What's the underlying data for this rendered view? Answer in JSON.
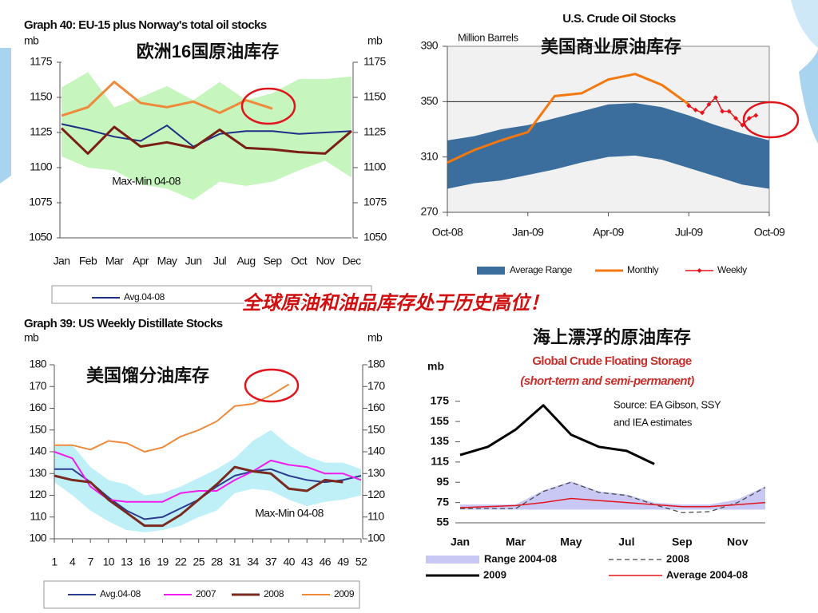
{
  "banner": "全球原油和油品库存处于历史高位！",
  "chart_data": [
    {
      "type": "line",
      "title": "Graph 40:  EU-15 plus Norway's total oil stocks",
      "annotation": "欧洲16国原油库存",
      "y_label": "mb",
      "y2_label": "mb",
      "categories": [
        "Jan",
        "Feb",
        "Mar",
        "Apr",
        "May",
        "Jun",
        "Jul",
        "Aug",
        "Sep",
        "Oct",
        "Nov",
        "Dec"
      ],
      "ylim": [
        1050,
        1175
      ],
      "yticks": [
        1050,
        1075,
        1100,
        1125,
        1150,
        1175
      ],
      "y2lim": [
        1050,
        1175
      ],
      "y2ticks": [
        1050,
        1075,
        1100,
        1125,
        1150,
        1175
      ],
      "band": {
        "name": "Max-Min 04-08",
        "color": "#c6f5be",
        "upper": [
          1157,
          1168,
          1143,
          1150,
          1158,
          1148,
          1161,
          1148,
          1153,
          1163,
          1163,
          1165
        ],
        "lower": [
          1108,
          1100,
          1098,
          1088,
          1085,
          1077,
          1090,
          1087,
          1090,
          1098,
          1105,
          1093
        ]
      },
      "series": [
        {
          "name": "Avg.04-08",
          "color": "#1f2f86",
          "values": [
            1131,
            1127,
            1122,
            1119,
            1130,
            1115,
            1124,
            1126,
            1126,
            1124,
            1125,
            1126
          ]
        },
        {
          "color": "#7a1f14",
          "values": [
            1128,
            1110,
            1129,
            1115,
            1118,
            1114,
            1127,
            1114,
            1113,
            1111,
            1110,
            1126
          ]
        },
        {
          "color": "#ef8a3c",
          "values": [
            1137,
            1143,
            1161,
            1146,
            1143,
            1147,
            1139,
            1148,
            1142,
            null,
            null,
            null
          ]
        }
      ]
    },
    {
      "type": "line",
      "title": "U.S. Crude Oil Stocks",
      "y_label": "Million Barrels",
      "annotation": "美国商业原油库存",
      "xlim": [
        0,
        12
      ],
      "xticks": [
        {
          "value": 0,
          "label": "Oct-08"
        },
        {
          "value": 3,
          "label": "Jan-09"
        },
        {
          "value": 6,
          "label": "Apr-09"
        },
        {
          "value": 9,
          "label": "Jul-09"
        },
        {
          "value": 12,
          "label": "Oct-09"
        }
      ],
      "ylim": [
        270,
        390
      ],
      "yticks": [
        270,
        310,
        350,
        390
      ],
      "hline": 350,
      "band": {
        "name": "Average Range",
        "color": "#3b6e9c",
        "x": [
          0,
          1,
          2,
          3,
          4,
          5,
          6,
          7,
          8,
          9,
          10,
          11,
          12
        ],
        "upper": [
          322,
          325,
          330,
          333,
          338,
          343,
          348,
          349,
          346,
          340,
          333,
          327,
          322
        ],
        "lower": [
          287,
          291,
          293,
          297,
          301,
          306,
          310,
          311,
          308,
          302,
          296,
          290,
          287
        ]
      },
      "series": [
        {
          "name": "Monthly",
          "color": "#f5780f",
          "x": [
            0,
            1,
            2,
            3,
            4,
            5,
            6,
            7,
            8,
            9
          ],
          "values": [
            306,
            315,
            322,
            328,
            354,
            356,
            366,
            370,
            362,
            348
          ]
        },
        {
          "name": "Weekly",
          "color": "#e8141c",
          "marker": true,
          "x": [
            9,
            9.25,
            9.5,
            9.75,
            10,
            10.25,
            10.5,
            10.75,
            11,
            11.25,
            11.5
          ],
          "values": [
            347,
            344,
            342,
            348,
            353,
            343,
            343,
            338,
            333,
            338,
            340
          ]
        }
      ]
    },
    {
      "type": "line",
      "title": "Graph 39:  US Weekly Distillate Stocks",
      "annotation": "美国馏分油库存",
      "y_label": "mb",
      "y2_label": "mb",
      "x": [
        1,
        4,
        7,
        10,
        13,
        16,
        19,
        22,
        25,
        28,
        31,
        34,
        37,
        40,
        43,
        46,
        49,
        52
      ],
      "xlim": [
        1,
        52
      ],
      "xticks": [
        1,
        4,
        7,
        10,
        13,
        16,
        19,
        22,
        25,
        28,
        31,
        34,
        37,
        40,
        43,
        46,
        49,
        52
      ],
      "ylim": [
        100,
        180
      ],
      "yticks": [
        100,
        110,
        120,
        130,
        140,
        150,
        160,
        170,
        180
      ],
      "y2lim": [
        100,
        180
      ],
      "y2ticks": [
        100,
        110,
        120,
        130,
        140,
        150,
        160,
        170,
        180
      ],
      "band": {
        "name": "Max-Min 04-08",
        "color": "#bff0f8",
        "upper": [
          143,
          143,
          133,
          127,
          125,
          120,
          121,
          124,
          128,
          132,
          137,
          145,
          150,
          143,
          138,
          135,
          135,
          132
        ],
        "lower": [
          126,
          120,
          113,
          108,
          104,
          103,
          104,
          106,
          110,
          113,
          121,
          123,
          122,
          118,
          115,
          117,
          118,
          120
        ]
      },
      "series": [
        {
          "name": "Avg.04-08",
          "color": "#2e3d8f",
          "values": [
            132,
            132,
            126,
            119,
            113,
            109,
            110,
            114,
            118,
            124,
            129,
            131,
            132,
            129,
            127,
            126,
            127,
            129
          ]
        },
        {
          "name": "2007",
          "color": "#f21cf0",
          "values": [
            140,
            137,
            124,
            118,
            117,
            117,
            117,
            121,
            122,
            122,
            127,
            131,
            136,
            134,
            133,
            130,
            130,
            127
          ]
        },
        {
          "name": "2008",
          "color": "#7a2a1e",
          "values": [
            129,
            127,
            126,
            118,
            112,
            106,
            106,
            111,
            118,
            125,
            133,
            131,
            130,
            123,
            122,
            127,
            126,
            null
          ]
        },
        {
          "name": "2009",
          "color": "#f08a3c",
          "values": [
            143,
            143,
            141,
            145,
            144,
            140,
            142,
            147,
            150,
            154,
            161,
            162,
            166,
            171,
            null,
            null,
            null,
            null
          ]
        }
      ]
    },
    {
      "type": "line",
      "title": "Global Crude Floating Storage",
      "subtitle": "(short-term and semi-permanent)",
      "annotation": "海上漂浮的原油库存",
      "source": [
        "Source: EA Gibson, SSY",
        "and IEA estimates"
      ],
      "y_label": "mb",
      "categories": [
        "Jan",
        null,
        "Mar",
        null,
        "May",
        null,
        "Jul",
        null,
        "Sep",
        null,
        "Nov",
        null
      ],
      "ylim": [
        55,
        185
      ],
      "yticks": [
        55,
        75,
        95,
        115,
        135,
        155,
        175
      ],
      "band": {
        "name": "Range 2004-08",
        "color": "#c9c8f5",
        "upper": [
          73,
          73,
          73,
          87,
          96,
          86,
          83,
          75,
          73,
          73,
          78,
          91
        ],
        "lower": [
          68,
          68,
          68,
          68,
          68,
          68,
          68,
          68,
          68,
          68,
          68,
          68
        ]
      },
      "series": [
        {
          "name": "2008",
          "color": "#444444",
          "dash": true,
          "values": [
            69,
            69,
            69,
            86,
            95,
            85,
            82,
            73,
            65,
            66,
            75,
            90
          ]
        },
        {
          "name": "2009",
          "color": "#000000",
          "values": [
            122,
            130,
            147,
            171,
            142,
            130,
            126,
            113,
            null,
            null,
            null,
            null
          ]
        },
        {
          "name": "Average 2004-08",
          "color": "#e0161c",
          "values": [
            70,
            71,
            72,
            75,
            79,
            77,
            75,
            73,
            71,
            71,
            73,
            75
          ]
        }
      ]
    }
  ]
}
